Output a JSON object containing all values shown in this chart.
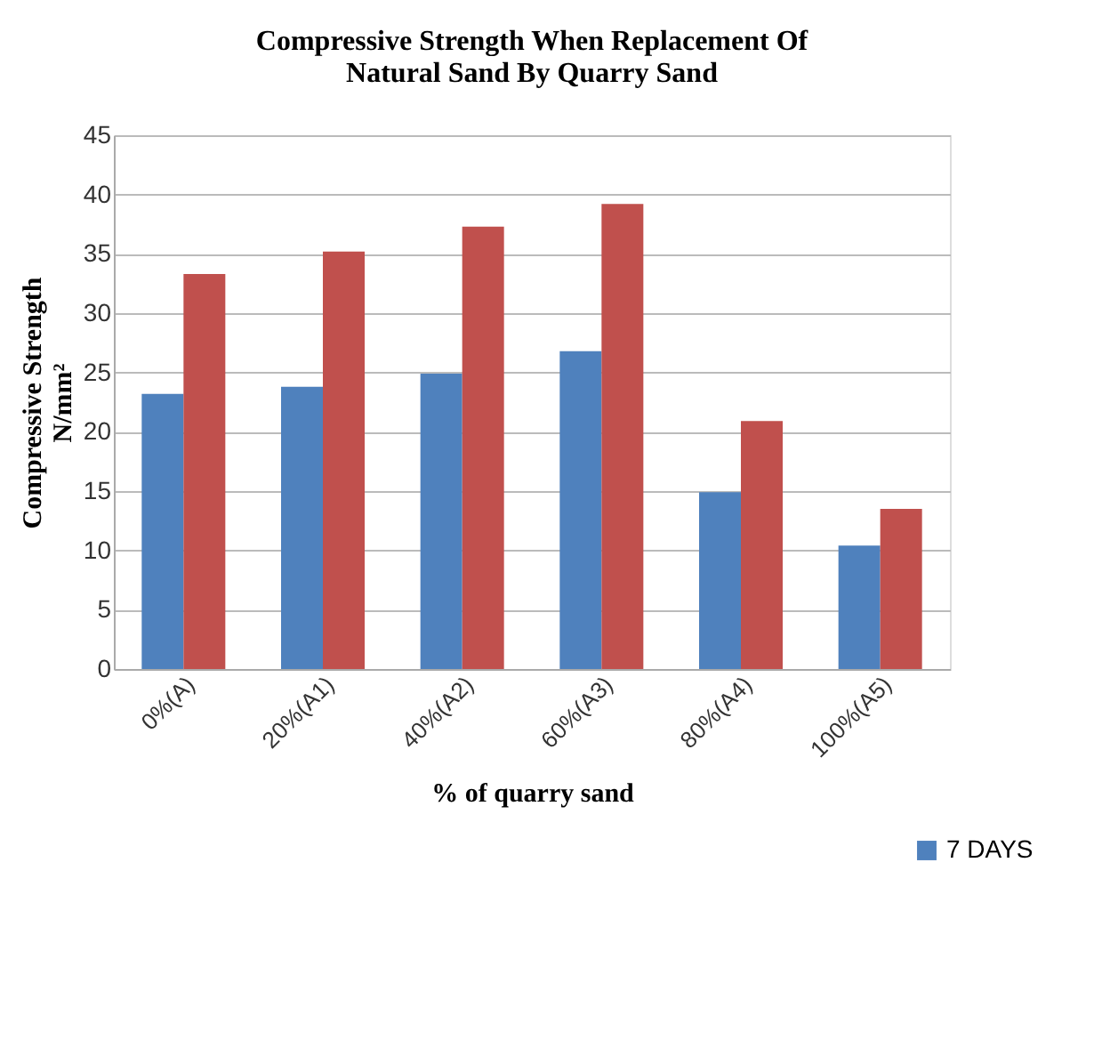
{
  "chart_data": {
    "type": "bar",
    "title": [
      "Compressive Strength When Replacement Of",
      "Natural Sand By Quarry Sand"
    ],
    "xlabel": "% of quarry sand",
    "ylabel": [
      "Compressive Strength",
      "N/mm²"
    ],
    "categories": [
      "0%(A)",
      "20%(A1)",
      "40%(A2)",
      "60%(A3)",
      "80%(A4)",
      "100%(A5)"
    ],
    "series": [
      {
        "name": "7 DAYS",
        "color": "#4f81bd",
        "values": [
          23.2,
          23.8,
          24.9,
          26.8,
          14.9,
          10.4
        ]
      },
      {
        "color": "#c0504d",
        "values": [
          33.3,
          35.2,
          37.3,
          39.2,
          20.9,
          13.5
        ]
      }
    ],
    "ylim": [
      0,
      45
    ],
    "yticks": [
      0,
      5,
      10,
      15,
      20,
      25,
      30,
      35,
      40,
      45
    ],
    "grid": "y",
    "legend": "bottom right"
  }
}
